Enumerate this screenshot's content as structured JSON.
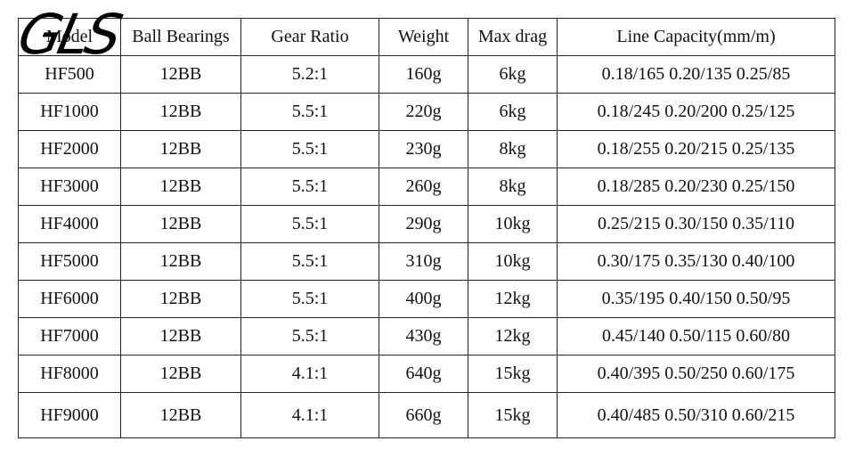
{
  "logo": "GLS",
  "table": {
    "header": [
      "Model",
      "Ball Bearings",
      "Gear Ratio",
      "Weight",
      "Max drag",
      "Line Capacity(mm/m)"
    ],
    "rows": [
      [
        "HF500",
        "12BB",
        "5.2:1",
        "160g",
        "6kg",
        "0.18/165 0.20/135 0.25/85"
      ],
      [
        "HF1000",
        "12BB",
        "5.5:1",
        "220g",
        "6kg",
        "0.18/245 0.20/200 0.25/125"
      ],
      [
        "HF2000",
        "12BB",
        "5.5:1",
        "230g",
        "8kg",
        "0.18/255 0.20/215 0.25/135"
      ],
      [
        "HF3000",
        "12BB",
        "5.5:1",
        "260g",
        "8kg",
        "0.18/285 0.20/230 0.25/150"
      ],
      [
        "HF4000",
        "12BB",
        "5.5:1",
        "290g",
        "10kg",
        "0.25/215 0.30/150 0.35/110"
      ],
      [
        "HF5000",
        "12BB",
        "5.5:1",
        "310g",
        "10kg",
        "0.30/175 0.35/130 0.40/100"
      ],
      [
        "HF6000",
        "12BB",
        "5.5:1",
        "400g",
        "12kg",
        "0.35/195 0.40/150 0.50/95"
      ],
      [
        "HF7000",
        "12BB",
        "5.5:1",
        "430g",
        "12kg",
        "0.45/140 0.50/115 0.60/80"
      ],
      [
        "HF8000",
        "12BB",
        "4.1:1",
        "640g",
        "15kg",
        "0.40/395 0.50/250 0.60/175"
      ],
      [
        "HF9000",
        "12BB",
        "4.1:1",
        "660g",
        "15kg",
        "0.40/485 0.50/310 0.60/215"
      ]
    ]
  }
}
